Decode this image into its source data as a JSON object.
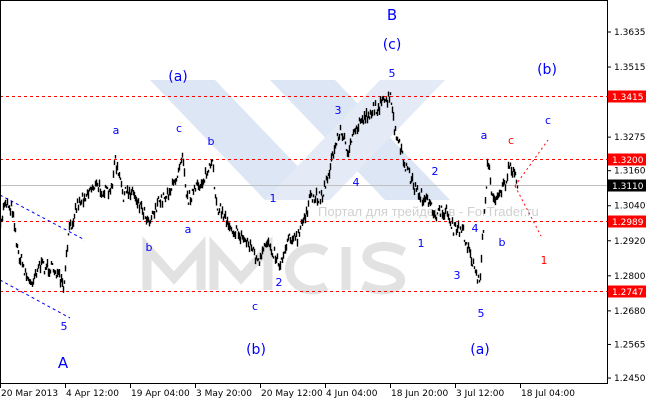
{
  "chart_data": {
    "type": "line",
    "title": "",
    "xlabel": "",
    "ylabel": "",
    "ylim": [
      1.243,
      1.3745
    ],
    "grid": false,
    "x_ticks": [
      "20 Mar 2013",
      "4 Apr 12:00",
      "19 Apr 04:00",
      "3 May 20:00",
      "20 May 12:00",
      "4 Jun 04:00",
      "18 Jun 20:00",
      "3 Jul 12:00",
      "18 Jul 04:00"
    ],
    "y_ticks": [
      "1.3635",
      "1.3515",
      "1.3275",
      "1.3160",
      "1.3040",
      "1.2920",
      "1.2800",
      "1.2680",
      "1.2565",
      "1.2450"
    ],
    "price_path": [
      [
        "2013-03-20",
        1.2957
      ],
      [
        "2013-03-21",
        1.306
      ],
      [
        "2013-03-23",
        1.3025
      ],
      [
        "2013-03-24",
        1.2888
      ],
      [
        "2013-03-27",
        1.2769
      ],
      [
        "2013-03-29",
        1.2837
      ],
      [
        "2013-04-02",
        1.282
      ],
      [
        "2013-04-04",
        1.2751
      ],
      [
        "2013-04-05",
        1.294
      ],
      [
        "2013-04-07",
        1.3043
      ],
      [
        "2013-04-11",
        1.3111
      ],
      [
        "2013-04-15",
        1.3077
      ],
      [
        "2013-04-16",
        1.3197
      ],
      [
        "2013-04-18",
        1.3077
      ],
      [
        "2013-04-20",
        1.3094
      ],
      [
        "2013-04-24",
        1.2991
      ],
      [
        "2013-04-26",
        1.3043
      ],
      [
        "2013-04-30",
        1.3111
      ],
      [
        "2013-05-02",
        1.3231
      ],
      [
        "2013-05-03",
        1.306
      ],
      [
        "2013-05-06",
        1.3111
      ],
      [
        "2013-05-09",
        1.318
      ],
      [
        "2013-05-10",
        1.3043
      ],
      [
        "2013-05-14",
        1.2957
      ],
      [
        "2013-05-18",
        1.2906
      ],
      [
        "2013-05-20",
        1.2837
      ],
      [
        "2013-05-22",
        1.2923
      ],
      [
        "2013-05-25",
        1.2837
      ],
      [
        "2013-05-27",
        1.294
      ],
      [
        "2013-05-29",
        1.2923
      ],
      [
        "2013-06-01",
        1.306
      ],
      [
        "2013-06-04",
        1.3077
      ],
      [
        "2013-06-08",
        1.3299
      ],
      [
        "2013-06-10",
        1.3231
      ],
      [
        "2013-06-13",
        1.3334
      ],
      [
        "2013-06-16",
        1.3368
      ],
      [
        "2013-06-20",
        1.3409
      ],
      [
        "2013-06-21",
        1.3299
      ],
      [
        "2013-06-23",
        1.3197
      ],
      [
        "2013-06-26",
        1.3094
      ],
      [
        "2013-06-28",
        1.306
      ],
      [
        "2013-07-01",
        1.3008
      ],
      [
        "2013-07-03",
        1.3025
      ],
      [
        "2013-07-05",
        1.2957
      ],
      [
        "2013-07-07",
        1.2957
      ],
      [
        "2013-07-10",
        1.282
      ],
      [
        "2013-07-11",
        1.2769
      ],
      [
        "2013-07-13",
        1.3203
      ],
      [
        "2013-07-14",
        1.306
      ],
      [
        "2013-07-17",
        1.3111
      ],
      [
        "2013-07-18",
        1.3169
      ],
      [
        "2013-07-20",
        1.3121
      ]
    ],
    "levels": [
      {
        "value": "1.3415",
        "color": "#ff0000",
        "style": "dashed"
      },
      {
        "value": "1.3200",
        "color": "#ff0000",
        "style": "dashed"
      },
      {
        "value": "1.2989",
        "color": "#ff0000",
        "style": "dashed"
      },
      {
        "value": "1.2747",
        "color": "#ff0000",
        "style": "dashed"
      }
    ],
    "current_price": {
      "value": "1.3110",
      "color": "#000000",
      "line_color": "#c0c0c0"
    },
    "wave_labels": [
      {
        "text": "B",
        "color": "#0000ff"
      },
      {
        "text": "(c)",
        "color": "#0000ff"
      },
      {
        "text": "5",
        "color": "#0000ff"
      },
      {
        "text": "(a)",
        "color": "#0000ff"
      },
      {
        "text": "a",
        "color": "#0000ff"
      },
      {
        "text": "c",
        "color": "#0000ff"
      },
      {
        "text": "b",
        "color": "#0000ff"
      },
      {
        "text": "3",
        "color": "#0000ff"
      },
      {
        "text": "4",
        "color": "#0000ff"
      },
      {
        "text": "2",
        "color": "#0000ff"
      },
      {
        "text": "1",
        "color": "#0000ff"
      },
      {
        "text": "b",
        "color": "#0000ff"
      },
      {
        "text": "a",
        "color": "#0000ff"
      },
      {
        "text": "1",
        "color": "#0000ff"
      },
      {
        "text": "4",
        "color": "#0000ff"
      },
      {
        "text": "b",
        "color": "#0000ff"
      },
      {
        "text": "3",
        "color": "#0000ff"
      },
      {
        "text": "2",
        "color": "#0000ff"
      },
      {
        "text": "c",
        "color": "#0000ff"
      },
      {
        "text": "5",
        "color": "#0000ff"
      },
      {
        "text": "5",
        "color": "#0000ff"
      },
      {
        "text": "A",
        "color": "#0000ff"
      },
      {
        "text": "(b)",
        "color": "#0000ff"
      },
      {
        "text": "(a)",
        "color": "#0000ff"
      },
      {
        "text": "(b)",
        "color": "#0000ff"
      },
      {
        "text": "a",
        "color": "#0000ff"
      },
      {
        "text": "c",
        "color": "#0000ff"
      },
      {
        "text": "c",
        "color": "#ff0000"
      },
      {
        "text": "1",
        "color": "#ff0000"
      }
    ],
    "series_color": "#000000"
  },
  "watermark": {
    "logo_text": "MMCIS",
    "caption": "Портал для трейдеров - ForTrader.ru"
  }
}
